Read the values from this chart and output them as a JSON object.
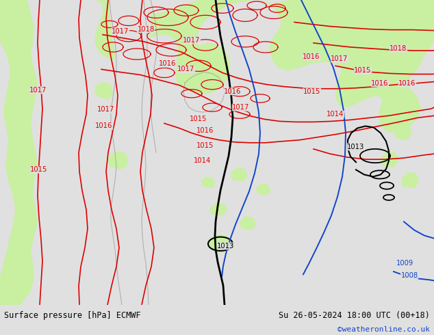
{
  "title_left": "Surface pressure [hPa] ECMWF",
  "title_right": "Su 26-05-2024 18:00 UTC (00+18)",
  "credit": "©weatheronline.co.uk",
  "bg_color": "#e0e0e0",
  "land_green": "#c8f0a0",
  "contour_red": "#dd0000",
  "contour_black": "#000000",
  "contour_blue": "#1144cc",
  "contour_gray": "#aaaaaa",
  "figsize": [
    6.34,
    4.9
  ],
  "dpi": 100
}
